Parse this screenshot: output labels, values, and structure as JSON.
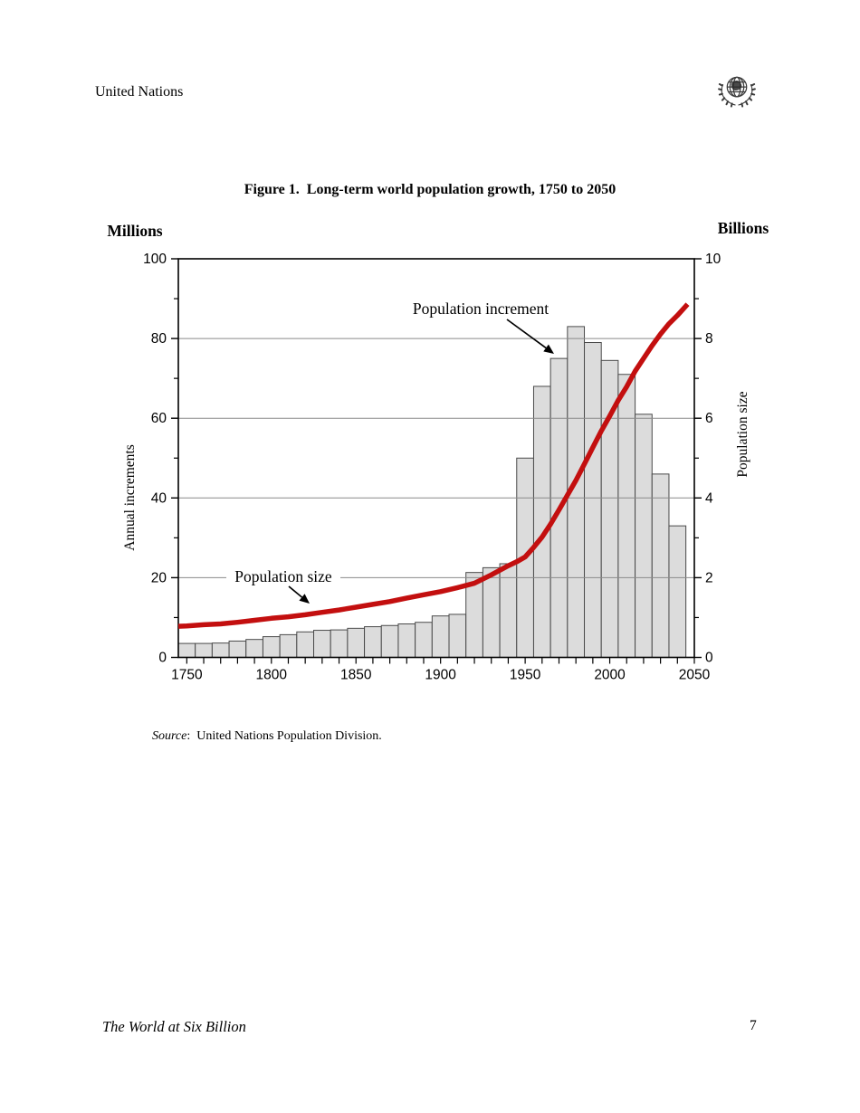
{
  "page": {
    "header_left": "United Nations",
    "footer_left": "The World at Six Billion",
    "footer_page_number": "7"
  },
  "figure": {
    "title": "Figure 1.  Long-term world population growth, 1750 to 2050",
    "source_label": "Source",
    "source_rest": ":  United Nations Population Division."
  },
  "chart_data": {
    "type": "bar+line",
    "title": "Long-term world population growth, 1750 to 2050",
    "x_axis": {
      "range": [
        1745,
        2050
      ],
      "major_ticks": [
        1750,
        1800,
        1850,
        1900,
        1950,
        2000,
        2050
      ],
      "minor_tick_step_years": 10
    },
    "left_axis": {
      "unit": "Millions",
      "title": "Annual increments",
      "range": [
        0,
        100
      ],
      "major_ticks": [
        0,
        20,
        40,
        60,
        80,
        100
      ],
      "minor_ticks": [
        10,
        30,
        50,
        70,
        90
      ],
      "gridlines": [
        20,
        40,
        60,
        80
      ]
    },
    "right_axis": {
      "unit": "Billions",
      "title": "Population size",
      "range": [
        0,
        10
      ],
      "major_ticks": [
        0,
        2,
        4,
        6,
        8,
        10
      ],
      "minor_ticks": [
        1,
        3,
        5,
        7,
        9
      ]
    },
    "bars": {
      "series_name": "Population increment",
      "axis": "left",
      "bar_width_years": 10,
      "categories": [
        1750,
        1760,
        1770,
        1780,
        1790,
        1800,
        1810,
        1820,
        1830,
        1840,
        1850,
        1860,
        1870,
        1880,
        1890,
        1900,
        1910,
        1920,
        1930,
        1940,
        1950,
        1960,
        1970,
        1980,
        1990,
        2000,
        2010,
        2020,
        2030,
        2040
      ],
      "values": [
        3.5,
        3.5,
        3.6,
        4.1,
        4.5,
        5.2,
        5.7,
        6.4,
        6.8,
        6.9,
        7.3,
        7.7,
        8.0,
        8.4,
        8.8,
        10.4,
        10.8,
        21.3,
        22.5,
        23.5,
        50,
        68,
        75,
        83,
        79,
        74.5,
        71,
        61,
        46,
        33
      ]
    },
    "line": {
      "series_name": "Population size",
      "axis": "right",
      "x": [
        1745,
        1750,
        1760,
        1770,
        1780,
        1790,
        1800,
        1810,
        1820,
        1830,
        1840,
        1850,
        1860,
        1870,
        1880,
        1890,
        1900,
        1910,
        1920,
        1930,
        1940,
        1945,
        1950,
        1955,
        1960,
        1965,
        1970,
        1975,
        1980,
        1985,
        1990,
        1995,
        2000,
        2005,
        2010,
        2015,
        2020,
        2025,
        2030,
        2035,
        2040,
        2046
      ],
      "y": [
        0.78,
        0.79,
        0.82,
        0.84,
        0.88,
        0.93,
        0.98,
        1.02,
        1.07,
        1.13,
        1.19,
        1.26,
        1.33,
        1.4,
        1.49,
        1.57,
        1.65,
        1.75,
        1.86,
        2.07,
        2.3,
        2.4,
        2.52,
        2.76,
        3.02,
        3.34,
        3.7,
        4.07,
        4.44,
        4.85,
        5.27,
        5.68,
        6.06,
        6.45,
        6.79,
        7.18,
        7.5,
        7.82,
        8.11,
        8.37,
        8.58,
        8.86
      ]
    },
    "annotations": [
      {
        "id": "population-increment",
        "text": "Population increment"
      },
      {
        "id": "population-size",
        "text": "Population size"
      }
    ],
    "colors": {
      "bar_fill": "#dcdcdc",
      "bar_stroke": "#4a4a4a",
      "line": "#c30f0f",
      "grid": "#8a8a8a",
      "axis": "#000000"
    }
  }
}
